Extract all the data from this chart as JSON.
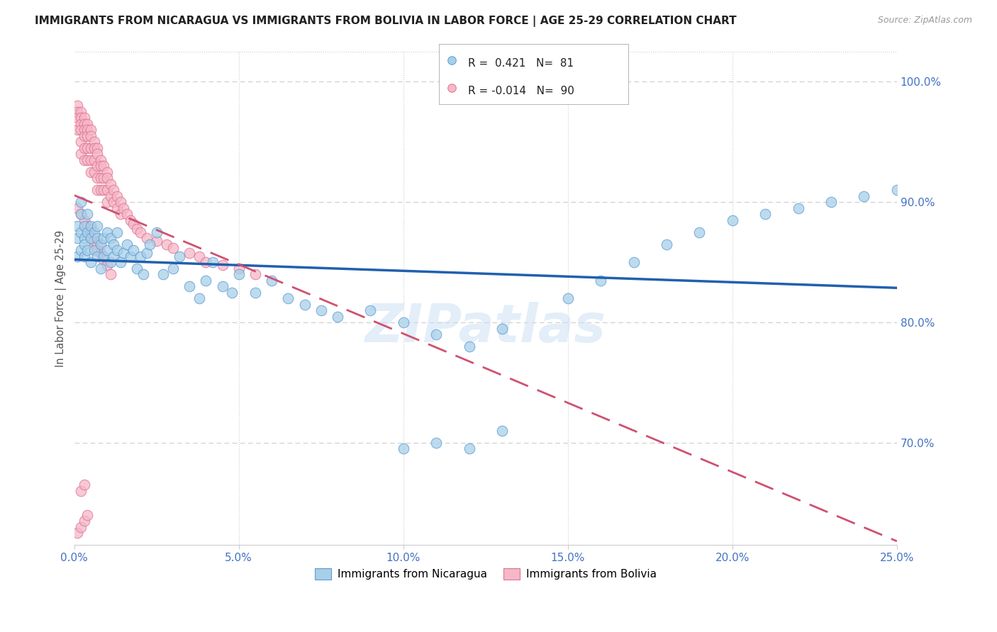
{
  "title": "IMMIGRANTS FROM NICARAGUA VS IMMIGRANTS FROM BOLIVIA IN LABOR FORCE | AGE 25-29 CORRELATION CHART",
  "source": "Source: ZipAtlas.com",
  "ylabel": "In Labor Force | Age 25-29",
  "ytick_positions": [
    0.7,
    0.8,
    0.9,
    1.0
  ],
  "ytick_labels": [
    "70.0%",
    "80.0%",
    "90.0%",
    "100.0%"
  ],
  "xtick_positions": [
    0.0,
    0.05,
    0.1,
    0.15,
    0.2,
    0.25
  ],
  "xtick_labels": [
    "0.0%",
    "5.0%",
    "10.0%",
    "15.0%",
    "20.0%",
    "25.0%"
  ],
  "xlim": [
    0.0,
    0.25
  ],
  "ylim": [
    0.615,
    1.025
  ],
  "nicaragua_R": 0.421,
  "nicaragua_N": 81,
  "bolivia_R": -0.014,
  "bolivia_N": 90,
  "nicaragua_color": "#a8cfe8",
  "bolivia_color": "#f5b8c8",
  "nicaragua_edge_color": "#5b9bd5",
  "bolivia_edge_color": "#e07090",
  "nicaragua_line_color": "#2060b0",
  "bolivia_line_color": "#d05070",
  "grid_color": "#cccccc",
  "title_color": "#222222",
  "axis_label_color": "#4472c4",
  "right_tick_color": "#4472c4",
  "watermark": "ZIPatlas",
  "nicaragua_x": [
    0.001,
    0.001,
    0.001,
    0.002,
    0.002,
    0.002,
    0.002,
    0.003,
    0.003,
    0.003,
    0.003,
    0.004,
    0.004,
    0.004,
    0.005,
    0.005,
    0.005,
    0.006,
    0.006,
    0.007,
    0.007,
    0.007,
    0.008,
    0.008,
    0.009,
    0.009,
    0.01,
    0.01,
    0.011,
    0.011,
    0.012,
    0.012,
    0.013,
    0.013,
    0.014,
    0.015,
    0.016,
    0.017,
    0.018,
    0.019,
    0.02,
    0.021,
    0.022,
    0.023,
    0.025,
    0.027,
    0.03,
    0.032,
    0.035,
    0.038,
    0.04,
    0.042,
    0.045,
    0.048,
    0.05,
    0.055,
    0.06,
    0.065,
    0.07,
    0.075,
    0.08,
    0.09,
    0.1,
    0.11,
    0.12,
    0.13,
    0.15,
    0.16,
    0.17,
    0.18,
    0.19,
    0.2,
    0.21,
    0.22,
    0.23,
    0.24,
    0.25,
    0.12,
    0.13,
    0.1,
    0.11
  ],
  "nicaragua_y": [
    0.855,
    0.87,
    0.88,
    0.86,
    0.875,
    0.89,
    0.9,
    0.87,
    0.855,
    0.88,
    0.865,
    0.86,
    0.875,
    0.89,
    0.85,
    0.87,
    0.88,
    0.86,
    0.875,
    0.855,
    0.87,
    0.88,
    0.845,
    0.865,
    0.855,
    0.87,
    0.86,
    0.875,
    0.85,
    0.87,
    0.855,
    0.865,
    0.86,
    0.875,
    0.85,
    0.858,
    0.865,
    0.855,
    0.86,
    0.845,
    0.855,
    0.84,
    0.858,
    0.865,
    0.875,
    0.84,
    0.845,
    0.855,
    0.83,
    0.82,
    0.835,
    0.85,
    0.83,
    0.825,
    0.84,
    0.825,
    0.835,
    0.82,
    0.815,
    0.81,
    0.805,
    0.81,
    0.8,
    0.79,
    0.78,
    0.795,
    0.82,
    0.835,
    0.85,
    0.865,
    0.875,
    0.885,
    0.89,
    0.895,
    0.9,
    0.905,
    0.91,
    0.695,
    0.71,
    0.695,
    0.7
  ],
  "bolivia_x": [
    0.001,
    0.001,
    0.001,
    0.001,
    0.002,
    0.002,
    0.002,
    0.002,
    0.002,
    0.002,
    0.003,
    0.003,
    0.003,
    0.003,
    0.003,
    0.003,
    0.004,
    0.004,
    0.004,
    0.004,
    0.004,
    0.005,
    0.005,
    0.005,
    0.005,
    0.005,
    0.006,
    0.006,
    0.006,
    0.006,
    0.007,
    0.007,
    0.007,
    0.007,
    0.007,
    0.008,
    0.008,
    0.008,
    0.008,
    0.009,
    0.009,
    0.009,
    0.01,
    0.01,
    0.01,
    0.01,
    0.011,
    0.011,
    0.012,
    0.012,
    0.013,
    0.013,
    0.014,
    0.014,
    0.015,
    0.016,
    0.017,
    0.018,
    0.019,
    0.02,
    0.022,
    0.025,
    0.028,
    0.03,
    0.035,
    0.038,
    0.04,
    0.045,
    0.05,
    0.055,
    0.001,
    0.002,
    0.003,
    0.004,
    0.004,
    0.005,
    0.005,
    0.006,
    0.007,
    0.007,
    0.008,
    0.009,
    0.01,
    0.011,
    0.002,
    0.003,
    0.001,
    0.002,
    0.003,
    0.004
  ],
  "bolivia_y": [
    0.98,
    0.975,
    0.97,
    0.96,
    0.975,
    0.97,
    0.965,
    0.96,
    0.95,
    0.94,
    0.97,
    0.965,
    0.96,
    0.955,
    0.945,
    0.935,
    0.965,
    0.96,
    0.955,
    0.945,
    0.935,
    0.96,
    0.955,
    0.945,
    0.935,
    0.925,
    0.95,
    0.945,
    0.935,
    0.925,
    0.945,
    0.94,
    0.93,
    0.92,
    0.91,
    0.935,
    0.93,
    0.92,
    0.91,
    0.93,
    0.92,
    0.91,
    0.925,
    0.92,
    0.91,
    0.9,
    0.915,
    0.905,
    0.91,
    0.9,
    0.905,
    0.895,
    0.9,
    0.89,
    0.895,
    0.89,
    0.885,
    0.882,
    0.878,
    0.875,
    0.87,
    0.868,
    0.865,
    0.862,
    0.858,
    0.855,
    0.85,
    0.848,
    0.845,
    0.84,
    0.895,
    0.89,
    0.885,
    0.88,
    0.875,
    0.878,
    0.87,
    0.868,
    0.865,
    0.86,
    0.858,
    0.852,
    0.848,
    0.84,
    0.66,
    0.665,
    0.625,
    0.63,
    0.635,
    0.64
  ]
}
